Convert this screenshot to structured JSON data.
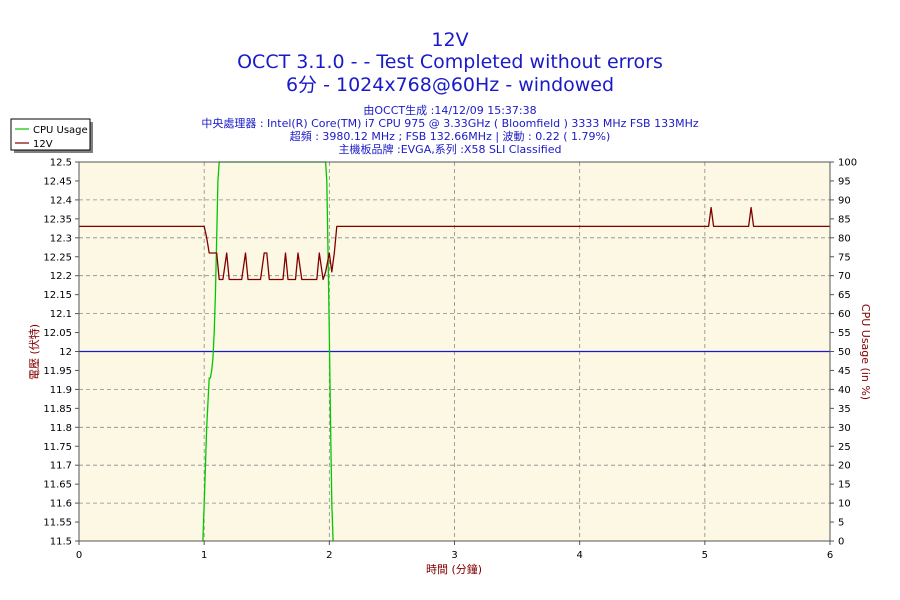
{
  "chart_data": {
    "type": "line",
    "title": "12V",
    "subtitle_lines": [
      "OCCT 3.1.0 -  - Test Completed without errors",
      "6分 - 1024x768@60Hz - windowed"
    ],
    "info_lines": [
      "由OCCT生成 :14/12/09 15:37:38",
      "中央處理器 : Intel(R) Core(TM) i7 CPU 975 @ 3.33GHz ( Bloomfield ) 3333 MHz FSB 133MHz",
      "超頻 : 3980.12 MHz ; FSB 132.66MHz | 波動 : 0.22 ( 1.79%)",
      "主機板品牌 :EVGA,系列 :X58 SLI Classified"
    ],
    "xlabel": "時間 (分鐘)",
    "ylabel": "電壓 (伏特)",
    "y2label": "CPU Usage (in %)",
    "xlim": [
      0,
      6
    ],
    "ylim": [
      11.5,
      12.5
    ],
    "y2lim": [
      0,
      100
    ],
    "x_ticks": [
      "0",
      "1",
      "2",
      "3",
      "4",
      "5",
      "6"
    ],
    "y_ticks": [
      "11.5",
      "11.55",
      "11.6",
      "11.65",
      "11.7",
      "11.75",
      "11.8",
      "11.85",
      "11.9",
      "11.95",
      "12",
      "12.05",
      "12.1",
      "12.15",
      "12.2",
      "12.25",
      "12.3",
      "12.35",
      "12.4",
      "12.45",
      "12.5"
    ],
    "y2_ticks": [
      "0",
      "5",
      "10",
      "15",
      "20",
      "25",
      "30",
      "35",
      "40",
      "45",
      "50",
      "55",
      "60",
      "65",
      "70",
      "75",
      "80",
      "85",
      "90",
      "95",
      "100"
    ],
    "grid": true,
    "legend_position": "top-left",
    "reference_line": 12.0,
    "series": [
      {
        "name": "CPU Usage",
        "axis": "right",
        "color": "#00c800",
        "x": [
          0.99,
          1.0,
          1.02,
          1.04,
          1.05,
          1.06,
          1.07,
          1.08,
          1.09,
          1.1,
          1.11,
          1.12,
          1.97,
          1.98,
          1.99,
          2.0,
          2.01,
          2.02,
          2.03
        ],
        "y": [
          0,
          10,
          30,
          43,
          43,
          45,
          48,
          55,
          65,
          80,
          95,
          100,
          100,
          95,
          75,
          55,
          30,
          10,
          0
        ]
      },
      {
        "name": "12V",
        "axis": "left",
        "color": "#800000",
        "x": [
          0,
          1.0,
          1.02,
          1.04,
          1.1,
          1.12,
          1.15,
          1.18,
          1.2,
          1.22,
          1.25,
          1.3,
          1.33,
          1.35,
          1.37,
          1.4,
          1.45,
          1.48,
          1.5,
          1.52,
          1.55,
          1.6,
          1.63,
          1.65,
          1.67,
          1.7,
          1.73,
          1.75,
          1.78,
          1.8,
          1.82,
          1.85,
          1.9,
          1.92,
          1.95,
          1.97,
          2.0,
          2.02,
          2.04,
          2.06,
          2.08,
          2.1,
          5.03,
          5.05,
          5.07,
          5.09,
          5.35,
          5.37,
          5.39,
          5.41,
          6.0
        ],
        "y": [
          12.33,
          12.33,
          12.3,
          12.26,
          12.26,
          12.19,
          12.19,
          12.26,
          12.19,
          12.19,
          12.19,
          12.19,
          12.26,
          12.19,
          12.19,
          12.19,
          12.19,
          12.26,
          12.26,
          12.19,
          12.19,
          12.19,
          12.19,
          12.26,
          12.19,
          12.19,
          12.19,
          12.26,
          12.19,
          12.19,
          12.19,
          12.19,
          12.19,
          12.26,
          12.19,
          12.21,
          12.26,
          12.21,
          12.26,
          12.33,
          12.33,
          12.33,
          12.33,
          12.38,
          12.33,
          12.33,
          12.33,
          12.38,
          12.33,
          12.33,
          12.33
        ]
      }
    ]
  }
}
